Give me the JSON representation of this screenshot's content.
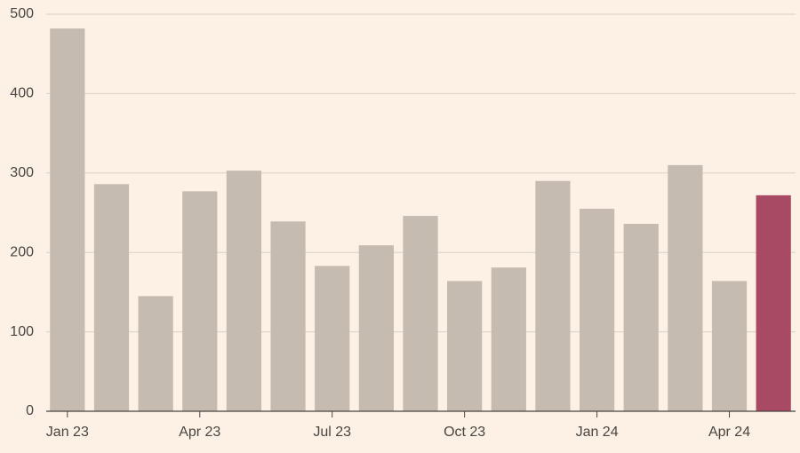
{
  "chart_data": {
    "type": "bar",
    "categories": [
      "Jan 23",
      null,
      null,
      "Apr 23",
      null,
      null,
      "Jul 23",
      null,
      null,
      "Oct 23",
      null,
      null,
      "Jan 24",
      null,
      null,
      "Apr 24",
      null
    ],
    "values": [
      482,
      286,
      145,
      277,
      303,
      239,
      183,
      209,
      246,
      164,
      181,
      290,
      255,
      236,
      310,
      164,
      272
    ],
    "colors": [
      "#c6bbb0",
      "#c6bbb0",
      "#c6bbb0",
      "#c6bbb0",
      "#c6bbb0",
      "#c6bbb0",
      "#c6bbb0",
      "#c6bbb0",
      "#c6bbb0",
      "#c6bbb0",
      "#c6bbb0",
      "#c6bbb0",
      "#c6bbb0",
      "#c6bbb0",
      "#c6bbb0",
      "#c6bbb0",
      "#a84a64"
    ],
    "ylim": [
      0,
      500
    ],
    "yticks": [
      0,
      100,
      200,
      300,
      400,
      500
    ],
    "grid": true
  }
}
